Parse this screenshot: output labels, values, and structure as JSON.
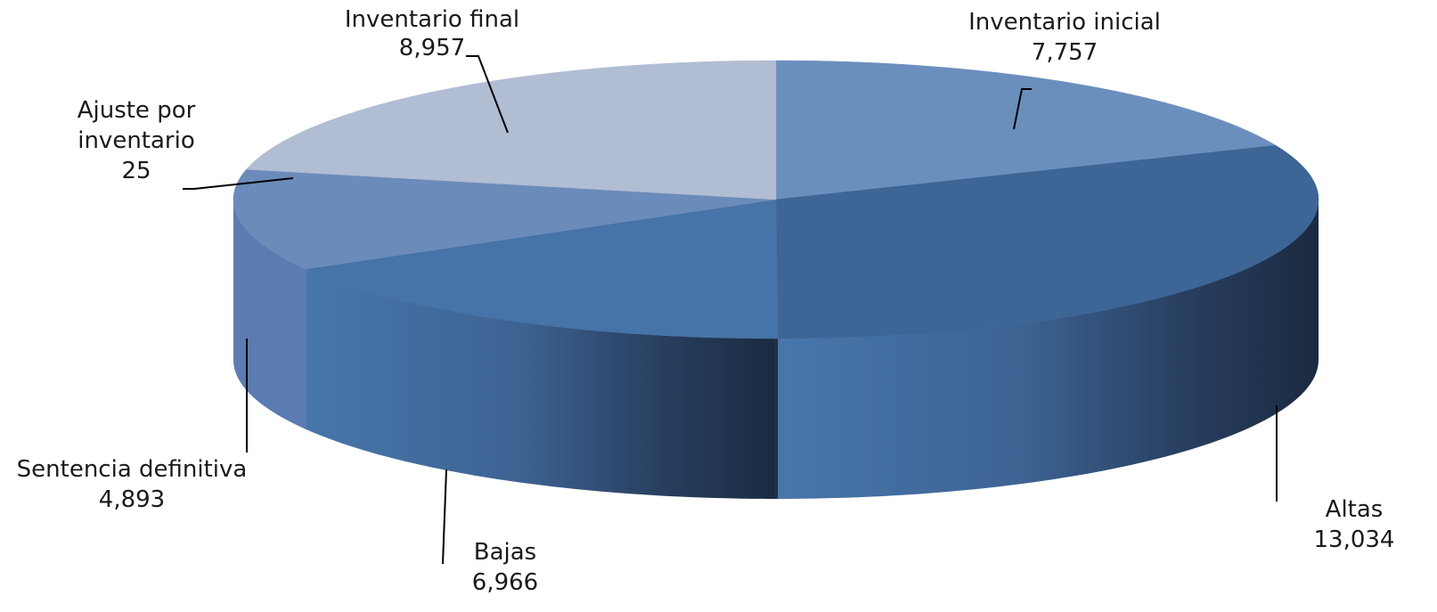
{
  "chart_data": {
    "type": "pie",
    "style": "3d",
    "categories": [
      "Inventario inicial",
      "Altas",
      "Bajas",
      "Sentencia definitiva",
      "Ajuste por inventario",
      "Inventario final"
    ],
    "values": [
      7757,
      13034,
      6966,
      4893,
      25,
      8957
    ],
    "value_labels": [
      "7,757",
      "13,034",
      "6,966",
      "4,893",
      "25",
      "8,957"
    ],
    "label_lines": [
      [
        "Inventario inicial"
      ],
      [
        "Altas"
      ],
      [
        "Bajas"
      ],
      [
        "Sentencia definitiva"
      ],
      [
        "Ajuste por",
        "inventario"
      ],
      [
        "Inventario final"
      ]
    ],
    "colors": [
      "#6b8fbd",
      "#3d6596",
      "#4673a8",
      "#6b8bba",
      "#6a88b6",
      "#b1bdd3"
    ],
    "side_colors": [
      "#5a7cab",
      "#1f3350",
      "#4a73a6",
      "#5a7cb0",
      "#5a7cb0",
      "#8e9cba"
    ],
    "legend": "none"
  }
}
